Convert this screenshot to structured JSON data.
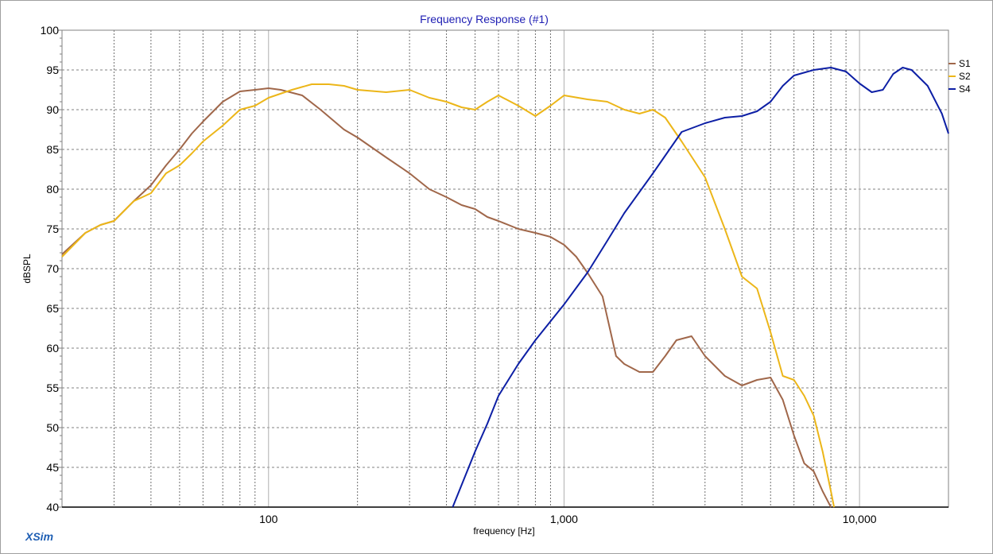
{
  "brand": "XSim",
  "chart_data": {
    "type": "line",
    "title": "Frequency Response (#1)",
    "xlabel": "frequency [Hz]",
    "ylabel": "dBSPL",
    "x_scale": "log",
    "xlim": [
      20,
      20000
    ],
    "ylim": [
      40,
      100
    ],
    "y_ticks": [
      40,
      45,
      50,
      55,
      60,
      65,
      70,
      75,
      80,
      85,
      90,
      95,
      100
    ],
    "y_tick_labels": [
      "40",
      "45",
      "50",
      "55",
      "60",
      "65",
      "70",
      "75",
      "80",
      "85",
      "90",
      "95",
      "100"
    ],
    "x_ticks": [
      100,
      1000,
      10000
    ],
    "x_tick_labels": [
      "100",
      "1,000",
      "10,000"
    ],
    "grid": true,
    "legend_position": "top-right",
    "series": [
      {
        "name": "S1",
        "color": "#a0674a",
        "points": [
          [
            20,
            71.8
          ],
          [
            24,
            74.5
          ],
          [
            27,
            75.5
          ],
          [
            30,
            76
          ],
          [
            35,
            78.5
          ],
          [
            40,
            80.5
          ],
          [
            45,
            83
          ],
          [
            50,
            85
          ],
          [
            55,
            87
          ],
          [
            60,
            88.5
          ],
          [
            70,
            91
          ],
          [
            80,
            92.3
          ],
          [
            90,
            92.5
          ],
          [
            100,
            92.7
          ],
          [
            110,
            92.5
          ],
          [
            130,
            91.8
          ],
          [
            150,
            90
          ],
          [
            180,
            87.5
          ],
          [
            200,
            86.5
          ],
          [
            250,
            84
          ],
          [
            300,
            82
          ],
          [
            350,
            80
          ],
          [
            400,
            79
          ],
          [
            450,
            78
          ],
          [
            500,
            77.5
          ],
          [
            550,
            76.5
          ],
          [
            600,
            76
          ],
          [
            700,
            75
          ],
          [
            800,
            74.5
          ],
          [
            900,
            74
          ],
          [
            1000,
            73
          ],
          [
            1100,
            71.5
          ],
          [
            1200,
            69.5
          ],
          [
            1350,
            66.5
          ],
          [
            1500,
            59
          ],
          [
            1600,
            58
          ],
          [
            1800,
            57
          ],
          [
            2000,
            57
          ],
          [
            2200,
            59
          ],
          [
            2400,
            61
          ],
          [
            2700,
            61.5
          ],
          [
            3000,
            59
          ],
          [
            3500,
            56.5
          ],
          [
            4000,
            55.3
          ],
          [
            4500,
            56
          ],
          [
            5000,
            56.3
          ],
          [
            5500,
            53.5
          ],
          [
            6000,
            49
          ],
          [
            6500,
            45.5
          ],
          [
            7000,
            44.5
          ],
          [
            7500,
            42
          ],
          [
            8000,
            40
          ]
        ]
      },
      {
        "name": "S2",
        "color": "#ecb619",
        "points": [
          [
            20,
            71.5
          ],
          [
            24,
            74.5
          ],
          [
            27,
            75.5
          ],
          [
            30,
            76
          ],
          [
            35,
            78.5
          ],
          [
            40,
            79.5
          ],
          [
            45,
            82
          ],
          [
            50,
            83
          ],
          [
            55,
            84.5
          ],
          [
            60,
            86
          ],
          [
            70,
            88
          ],
          [
            80,
            90
          ],
          [
            90,
            90.5
          ],
          [
            100,
            91.5
          ],
          [
            120,
            92.5
          ],
          [
            140,
            93.2
          ],
          [
            160,
            93.2
          ],
          [
            180,
            93
          ],
          [
            200,
            92.5
          ],
          [
            250,
            92.2
          ],
          [
            300,
            92.5
          ],
          [
            350,
            91.5
          ],
          [
            400,
            91
          ],
          [
            450,
            90.3
          ],
          [
            500,
            90
          ],
          [
            550,
            91
          ],
          [
            600,
            91.8
          ],
          [
            700,
            90.5
          ],
          [
            800,
            89.2
          ],
          [
            900,
            90.5
          ],
          [
            1000,
            91.8
          ],
          [
            1200,
            91.3
          ],
          [
            1400,
            91
          ],
          [
            1600,
            90
          ],
          [
            1800,
            89.5
          ],
          [
            2000,
            90
          ],
          [
            2200,
            89
          ],
          [
            2500,
            86
          ],
          [
            3000,
            81.5
          ],
          [
            3500,
            75
          ],
          [
            4000,
            69
          ],
          [
            4500,
            67.5
          ],
          [
            5000,
            62
          ],
          [
            5500,
            56.5
          ],
          [
            6000,
            56
          ],
          [
            6500,
            54
          ],
          [
            7000,
            51.5
          ],
          [
            7500,
            47
          ],
          [
            8000,
            42
          ],
          [
            8200,
            40
          ]
        ]
      },
      {
        "name": "S4",
        "color": "#0d1fa5",
        "points": [
          [
            420,
            40
          ],
          [
            500,
            47
          ],
          [
            550,
            50.5
          ],
          [
            600,
            54
          ],
          [
            700,
            58
          ],
          [
            800,
            61
          ],
          [
            1000,
            65.5
          ],
          [
            1200,
            69.5
          ],
          [
            1400,
            73.5
          ],
          [
            1600,
            77
          ],
          [
            2000,
            82
          ],
          [
            2500,
            87.2
          ],
          [
            3000,
            88.3
          ],
          [
            3500,
            89
          ],
          [
            4000,
            89.2
          ],
          [
            4500,
            89.8
          ],
          [
            5000,
            91
          ],
          [
            5500,
            93
          ],
          [
            6000,
            94.3
          ],
          [
            7000,
            95
          ],
          [
            8000,
            95.3
          ],
          [
            9000,
            94.8
          ],
          [
            10000,
            93.3
          ],
          [
            11000,
            92.2
          ],
          [
            12000,
            92.5
          ],
          [
            13000,
            94.5
          ],
          [
            14000,
            95.3
          ],
          [
            15000,
            95
          ],
          [
            17000,
            93
          ],
          [
            19000,
            89.5
          ],
          [
            20000,
            87
          ]
        ]
      }
    ]
  }
}
